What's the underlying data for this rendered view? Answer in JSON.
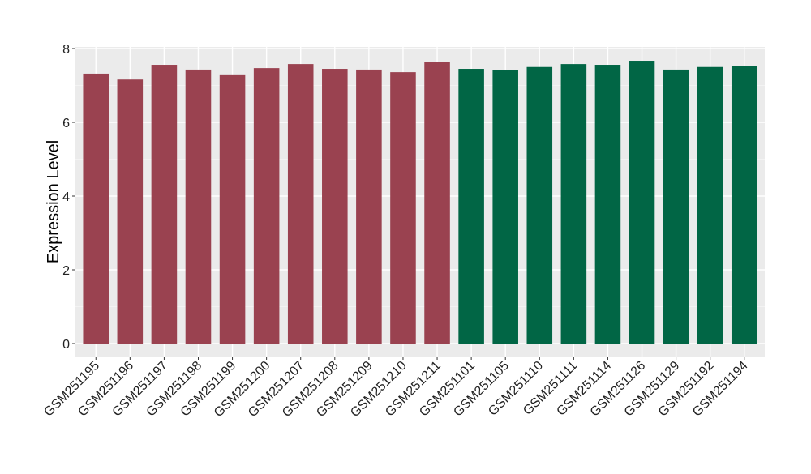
{
  "chart_data": {
    "type": "bar",
    "title": "",
    "xlabel": "",
    "ylabel": "Expression Level",
    "ylim": [
      -0.4,
      8.1
    ],
    "yticks": [
      0,
      2,
      4,
      6,
      8
    ],
    "grid": true,
    "legend": "none",
    "categories": [
      "GSM251195",
      "GSM251196",
      "GSM251197",
      "GSM251198",
      "GSM251199",
      "GSM251200",
      "GSM251207",
      "GSM251208",
      "GSM251209",
      "GSM251210",
      "GSM251211",
      "GSM251101",
      "GSM251105",
      "GSM251110",
      "GSM251111",
      "GSM251114",
      "GSM251126",
      "GSM251129",
      "GSM251192",
      "GSM251194"
    ],
    "values": [
      7.32,
      7.16,
      7.56,
      7.43,
      7.3,
      7.47,
      7.58,
      7.45,
      7.43,
      7.36,
      7.63,
      7.45,
      7.41,
      7.5,
      7.58,
      7.56,
      7.67,
      7.43,
      7.5,
      7.52
    ],
    "groups": [
      0,
      0,
      0,
      0,
      0,
      0,
      0,
      0,
      0,
      0,
      0,
      1,
      1,
      1,
      1,
      1,
      1,
      1,
      1,
      1
    ],
    "colors": [
      "#9a4250",
      "#016645"
    ]
  }
}
